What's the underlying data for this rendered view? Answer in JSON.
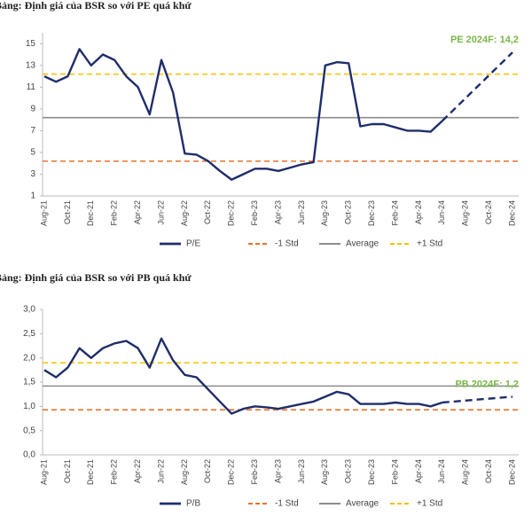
{
  "chart_data": [
    {
      "type": "line",
      "title": "Bảng: Định giá của BSR so với PE quá khứ",
      "categories": [
        "Aug-21",
        null,
        "Oct-21",
        null,
        "Dec-21",
        null,
        "Feb-22",
        null,
        "Apr-22",
        null,
        "Jun-22",
        null,
        "Aug-22",
        null,
        "Oct-22",
        null,
        "Dec-22",
        null,
        "Feb-23",
        null,
        "Apr-23",
        null,
        "Jun-23",
        null,
        "Aug-23",
        null,
        "Oct-23",
        null,
        "Dec-23",
        null,
        "Feb-24",
        null,
        "Apr-24",
        null,
        "Jun-24",
        null,
        "Aug-24",
        null,
        "Oct-24",
        null,
        "Dec-24"
      ],
      "series": [
        {
          "name": "P/E",
          "color": "#1f2d6b",
          "values": [
            12,
            11.5,
            12,
            14.5,
            13,
            14,
            13.5,
            12,
            11,
            8.5,
            13.5,
            10.5,
            4.9,
            4.8,
            4.2,
            3.3,
            2.5,
            3,
            3.5,
            3.5,
            3.3,
            3.6,
            3.9,
            4.1,
            13,
            13.3,
            13.2,
            7.4,
            7.6,
            7.6,
            7.3,
            7.0,
            7.0,
            6.9,
            7.9,
            null,
            null,
            null,
            null,
            null,
            null
          ]
        }
      ],
      "reference_lines": [
        {
          "name": "-1 Std",
          "value": 4.2,
          "color": "#e8742c",
          "dashed": true
        },
        {
          "name": "Average",
          "value": 8.2,
          "color": "#8c8c8c",
          "dashed": false
        },
        {
          "name": "+1 Std",
          "value": 12.2,
          "color": "#f2c200",
          "dashed": true
        }
      ],
      "annotation": {
        "text": "PE 2024F: 14,2",
        "value": 14.2
      },
      "ylim": [
        1,
        16
      ],
      "yticks": [
        1,
        3,
        5,
        7,
        9,
        11,
        13,
        15
      ]
    },
    {
      "type": "line",
      "title": "Bảng: Định giá của BSR so với PB quá khứ",
      "categories": [
        "Aug-21",
        null,
        "Oct-21",
        null,
        "Dec-21",
        null,
        "Feb-22",
        null,
        "Apr-22",
        null,
        "Jun-22",
        null,
        "Aug-22",
        null,
        "Oct-22",
        null,
        "Dec-22",
        null,
        "Feb-23",
        null,
        "Apr-23",
        null,
        "Jun-23",
        null,
        "Aug-23",
        null,
        "Oct-23",
        null,
        "Dec-23",
        null,
        "Feb-24",
        null,
        "Apr-24",
        null,
        "Jun-24",
        null,
        "Aug-24",
        null,
        "Oct-24",
        null,
        "Dec-24"
      ],
      "series": [
        {
          "name": "P/B",
          "color": "#1f2d6b",
          "values": [
            1.75,
            1.6,
            1.8,
            2.2,
            2.0,
            2.2,
            2.3,
            2.35,
            2.2,
            1.8,
            2.4,
            1.95,
            1.65,
            1.6,
            1.35,
            1.1,
            0.85,
            0.95,
            1.0,
            0.98,
            0.95,
            1.0,
            1.05,
            1.1,
            1.2,
            1.3,
            1.25,
            1.05,
            1.05,
            1.05,
            1.08,
            1.05,
            1.05,
            1.0,
            1.08,
            null,
            null,
            null,
            null,
            null,
            null
          ]
        }
      ],
      "reference_lines": [
        {
          "name": "-1 Std",
          "value": 0.93,
          "color": "#e8742c",
          "dashed": true
        },
        {
          "name": "Average",
          "value": 1.42,
          "color": "#8c8c8c",
          "dashed": false
        },
        {
          "name": "+1 Std",
          "value": 1.9,
          "color": "#f2c200",
          "dashed": true
        }
      ],
      "annotation": {
        "text": "PB 2024F: 1,2",
        "value": 1.2
      },
      "ylim": [
        0,
        3
      ],
      "yticks": [
        {
          "value": 0,
          "label": "0,0"
        },
        {
          "value": 0.5,
          "label": "0,5"
        },
        {
          "value": 1,
          "label": "1,0"
        },
        {
          "value": 1.5,
          "label": "1,5"
        },
        {
          "value": 2,
          "label": "2,0"
        },
        {
          "value": 2.5,
          "label": "2,5"
        },
        {
          "value": 3,
          "label": "3,0"
        }
      ]
    }
  ]
}
